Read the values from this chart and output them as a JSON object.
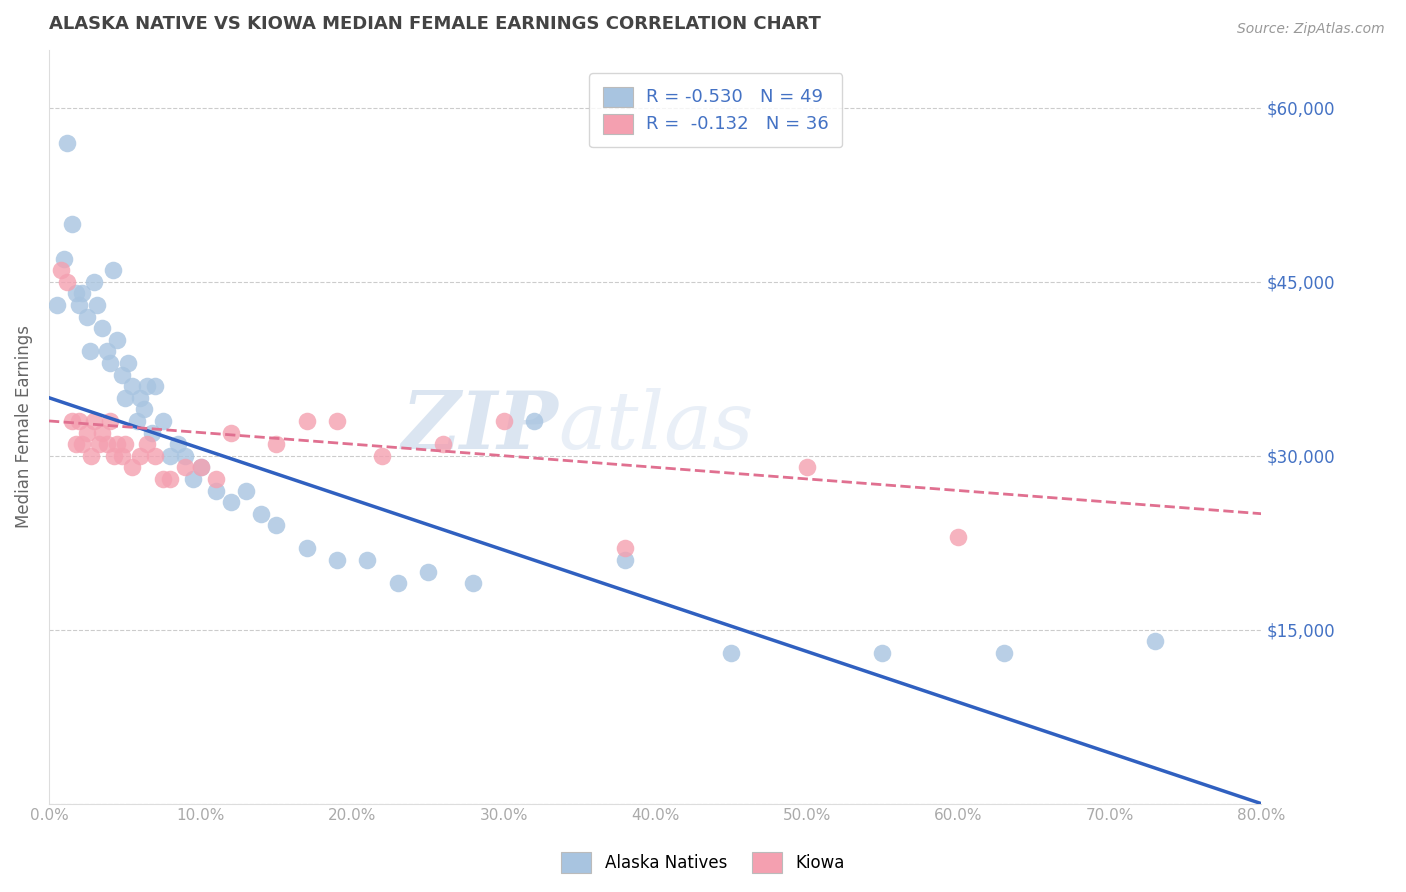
{
  "title": "ALASKA NATIVE VS KIOWA MEDIAN FEMALE EARNINGS CORRELATION CHART",
  "source": "Source: ZipAtlas.com",
  "ylabel": "Median Female Earnings",
  "xlim": [
    0,
    0.8
  ],
  "ylim": [
    0,
    65000
  ],
  "yticks": [
    0,
    15000,
    30000,
    45000,
    60000
  ],
  "ytick_labels": [
    "",
    "$15,000",
    "$30,000",
    "$45,000",
    "$60,000"
  ],
  "xticks": [
    0.0,
    0.1,
    0.2,
    0.3,
    0.4,
    0.5,
    0.6,
    0.7,
    0.8
  ],
  "xtick_labels": [
    "0.0%",
    "10.0%",
    "20.0%",
    "30.0%",
    "40.0%",
    "50.0%",
    "60.0%",
    "70.0%",
    "80.0%"
  ],
  "alaska_color": "#a8c4e0",
  "kiowa_color": "#f4a0b0",
  "alaska_line_color": "#3060c0",
  "kiowa_line_color": "#e07090",
  "watermark_zip": "ZIP",
  "watermark_atlas": "atlas",
  "grid_color": "#cccccc",
  "alaska_scatter_x": [
    0.005,
    0.01,
    0.012,
    0.015,
    0.018,
    0.02,
    0.022,
    0.025,
    0.027,
    0.03,
    0.032,
    0.035,
    0.038,
    0.04,
    0.042,
    0.045,
    0.048,
    0.05,
    0.052,
    0.055,
    0.058,
    0.06,
    0.063,
    0.065,
    0.068,
    0.07,
    0.075,
    0.08,
    0.085,
    0.09,
    0.095,
    0.1,
    0.11,
    0.12,
    0.13,
    0.14,
    0.15,
    0.17,
    0.19,
    0.21,
    0.23,
    0.25,
    0.28,
    0.32,
    0.38,
    0.45,
    0.55,
    0.63,
    0.73
  ],
  "alaska_scatter_y": [
    43000,
    47000,
    57000,
    50000,
    44000,
    43000,
    44000,
    42000,
    39000,
    45000,
    43000,
    41000,
    39000,
    38000,
    46000,
    40000,
    37000,
    35000,
    38000,
    36000,
    33000,
    35000,
    34000,
    36000,
    32000,
    36000,
    33000,
    30000,
    31000,
    30000,
    28000,
    29000,
    27000,
    26000,
    27000,
    25000,
    24000,
    22000,
    21000,
    21000,
    19000,
    20000,
    19000,
    33000,
    21000,
    13000,
    13000,
    13000,
    14000
  ],
  "kiowa_scatter_x": [
    0.008,
    0.012,
    0.015,
    0.018,
    0.02,
    0.022,
    0.025,
    0.028,
    0.03,
    0.033,
    0.035,
    0.038,
    0.04,
    0.043,
    0.045,
    0.048,
    0.05,
    0.055,
    0.06,
    0.065,
    0.07,
    0.075,
    0.08,
    0.09,
    0.1,
    0.11,
    0.12,
    0.15,
    0.17,
    0.19,
    0.22,
    0.26,
    0.3,
    0.38,
    0.5,
    0.6
  ],
  "kiowa_scatter_y": [
    46000,
    45000,
    33000,
    31000,
    33000,
    31000,
    32000,
    30000,
    33000,
    31000,
    32000,
    31000,
    33000,
    30000,
    31000,
    30000,
    31000,
    29000,
    30000,
    31000,
    30000,
    28000,
    28000,
    29000,
    29000,
    28000,
    32000,
    31000,
    33000,
    33000,
    30000,
    31000,
    33000,
    22000,
    29000,
    23000
  ],
  "alaska_line_x0": 0.0,
  "alaska_line_y0": 35000,
  "alaska_line_x1": 0.8,
  "alaska_line_y1": 0,
  "kiowa_line_x0": 0.0,
  "kiowa_line_y0": 33000,
  "kiowa_line_x1": 0.8,
  "kiowa_line_y1": 25000
}
